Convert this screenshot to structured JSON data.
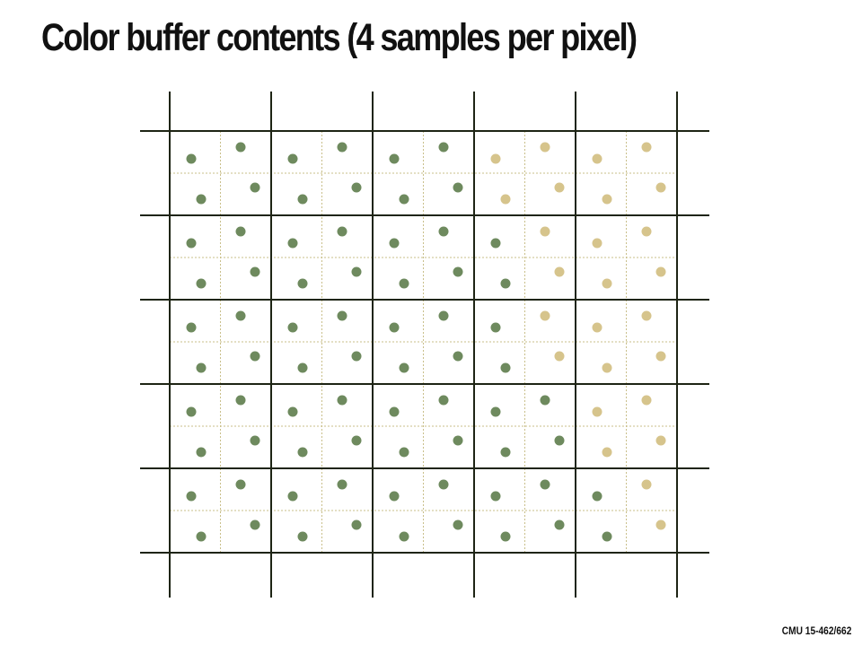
{
  "slide": {
    "title": "Color buffer contents (4 samples per pixel)",
    "footer": "CMU 15-462/662"
  },
  "colors": {
    "pixel_grid": "#1e2414",
    "subpixel_grid": "#c9bf8a",
    "sample_green": "#6e8a5e",
    "sample_tan": "#d6c48c"
  },
  "diagram": {
    "pixel_columns": 5,
    "pixel_rows": 5,
    "samples_per_pixel": 4,
    "sample_colors": [
      [
        "green",
        "green",
        "green",
        "tan",
        "tan"
      ],
      [
        "green",
        "green",
        "green",
        "mixed",
        "tan"
      ],
      [
        "green",
        "green",
        "green",
        "mixed",
        "tan"
      ],
      [
        "green",
        "green",
        "green",
        "green",
        "tan"
      ],
      [
        "green",
        "green",
        "green",
        "green",
        "mixed"
      ]
    ],
    "mixed_pixel_samples": {
      "1,3": [
        "green",
        "tan",
        "green",
        "tan"
      ],
      "2,3": [
        "green",
        "tan",
        "green",
        "tan"
      ],
      "4,4": [
        "green",
        "tan",
        "green",
        "tan"
      ]
    }
  }
}
